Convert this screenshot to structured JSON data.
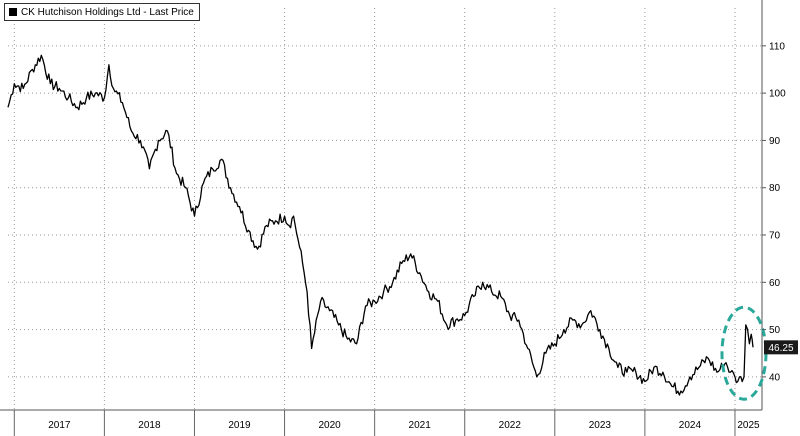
{
  "legend": {
    "label": "CK Hutchison Holdings Ltd - Last Price",
    "swatch_color": "#000000"
  },
  "chart_data": {
    "type": "line",
    "title": "",
    "xlabel": "",
    "ylabel": "",
    "x_axis": {
      "type": "year",
      "range": [
        2016.93,
        2025.3
      ],
      "tick_labels": [
        "2017",
        "2018",
        "2019",
        "2020",
        "2021",
        "2022",
        "2023",
        "2024",
        "2025"
      ],
      "tick_values": [
        2017.5,
        2018.5,
        2019.5,
        2020.5,
        2021.5,
        2022.5,
        2023.5,
        2024.5,
        2025.15
      ]
    },
    "y_axis": {
      "position": "right",
      "range": [
        33,
        118
      ],
      "ticks": [
        40,
        50,
        60,
        70,
        80,
        90,
        100,
        110
      ]
    },
    "grid": true,
    "legend_position": "top-left",
    "series": [
      {
        "name": "CK Hutchison Holdings Ltd - Last Price",
        "color": "#000000",
        "x": [
          2016.93,
          2017.0,
          2017.1,
          2017.2,
          2017.3,
          2017.4,
          2017.5,
          2017.6,
          2017.7,
          2017.8,
          2017.9,
          2018.0,
          2018.05,
          2018.1,
          2018.2,
          2018.3,
          2018.4,
          2018.5,
          2018.6,
          2018.7,
          2018.8,
          2018.9,
          2019.0,
          2019.1,
          2019.2,
          2019.3,
          2019.4,
          2019.5,
          2019.6,
          2019.7,
          2019.8,
          2019.9,
          2020.0,
          2020.05,
          2020.1,
          2020.15,
          2020.2,
          2020.25,
          2020.3,
          2020.4,
          2020.5,
          2020.6,
          2020.7,
          2020.8,
          2020.9,
          2021.0,
          2021.1,
          2021.2,
          2021.3,
          2021.4,
          2021.5,
          2021.6,
          2021.7,
          2021.8,
          2021.9,
          2022.0,
          2022.1,
          2022.2,
          2022.3,
          2022.4,
          2022.5,
          2022.6,
          2022.7,
          2022.8,
          2022.9,
          2023.0,
          2023.1,
          2023.2,
          2023.3,
          2023.4,
          2023.5,
          2023.6,
          2023.7,
          2023.8,
          2023.9,
          2024.0,
          2024.1,
          2024.2,
          2024.3,
          2024.4,
          2024.5,
          2024.6,
          2024.7,
          2024.8,
          2024.9,
          2024.95,
          2025.0,
          2025.03,
          2025.05,
          2025.08,
          2025.1,
          2025.12,
          2025.14,
          2025.16,
          2025.18,
          2025.19,
          2025.2
        ],
        "values": [
          97,
          102,
          101,
          105,
          108,
          102,
          101,
          99,
          97,
          99,
          100,
          99,
          106,
          101,
          98,
          92,
          90,
          84,
          90,
          92,
          83,
          80,
          74,
          81,
          84,
          86,
          80,
          76,
          71,
          67,
          72,
          73,
          74,
          72,
          74,
          69,
          64,
          58,
          46,
          56,
          54,
          51,
          48,
          47,
          55,
          56,
          58,
          60,
          64,
          66,
          62,
          58,
          56,
          51,
          52,
          53,
          57,
          60,
          58,
          57,
          53,
          52,
          46,
          40,
          45,
          47,
          50,
          52,
          51,
          54,
          50,
          46,
          42,
          41,
          41,
          39,
          42,
          41,
          38,
          37,
          40,
          42,
          44,
          41,
          43,
          41,
          40,
          39,
          40,
          39,
          40,
          51,
          50,
          47,
          49,
          48,
          46.25
        ]
      }
    ],
    "last_value_label": "46.25",
    "annotation": {
      "type": "dashed-ellipse",
      "color": "#2aa89a",
      "x_center": 2025.1,
      "y_center": 45
    }
  }
}
